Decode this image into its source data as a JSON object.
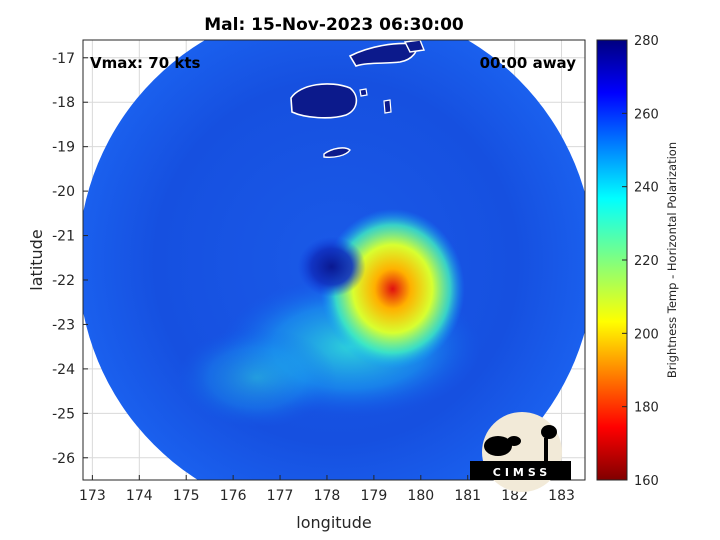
{
  "chart_data": {
    "type": "heatmap",
    "title": "Mal: 15-Nov-2023 06:30:00",
    "xlabel": "longitude",
    "ylabel": "latitude",
    "xlim": [
      172.8,
      183.5
    ],
    "ylim": [
      -26.5,
      -16.6
    ],
    "xticks": [
      173,
      174,
      175,
      176,
      177,
      178,
      179,
      180,
      181,
      182,
      183
    ],
    "yticks": [
      -17,
      -18,
      -19,
      -20,
      -21,
      -22,
      -23,
      -24,
      -25,
      -26
    ],
    "grid": true,
    "annotations": {
      "vmax": "Vmax: 70 kts",
      "away": "00:00 away"
    },
    "colorbar": {
      "label": "Brightness Temp - Horizontal Polarization",
      "ticks": [
        160,
        180,
        200,
        220,
        240,
        260,
        280
      ],
      "range": [
        160,
        280
      ],
      "colormap": "jet"
    },
    "swath": {
      "center_lon": 178.2,
      "center_lat": -21.6,
      "radius_deg": 5.5,
      "background_tb": 262
    },
    "features": [
      {
        "name": "eye",
        "lon": 178.1,
        "lat": -21.7,
        "tb": 270
      },
      {
        "name": "convection-core",
        "lon": 179.4,
        "lat": -22.2,
        "tb": 200
      },
      {
        "name": "rainband-south",
        "lon": 178.5,
        "lat": -23.5,
        "tb": 240
      }
    ],
    "logo": "CIMSS"
  }
}
